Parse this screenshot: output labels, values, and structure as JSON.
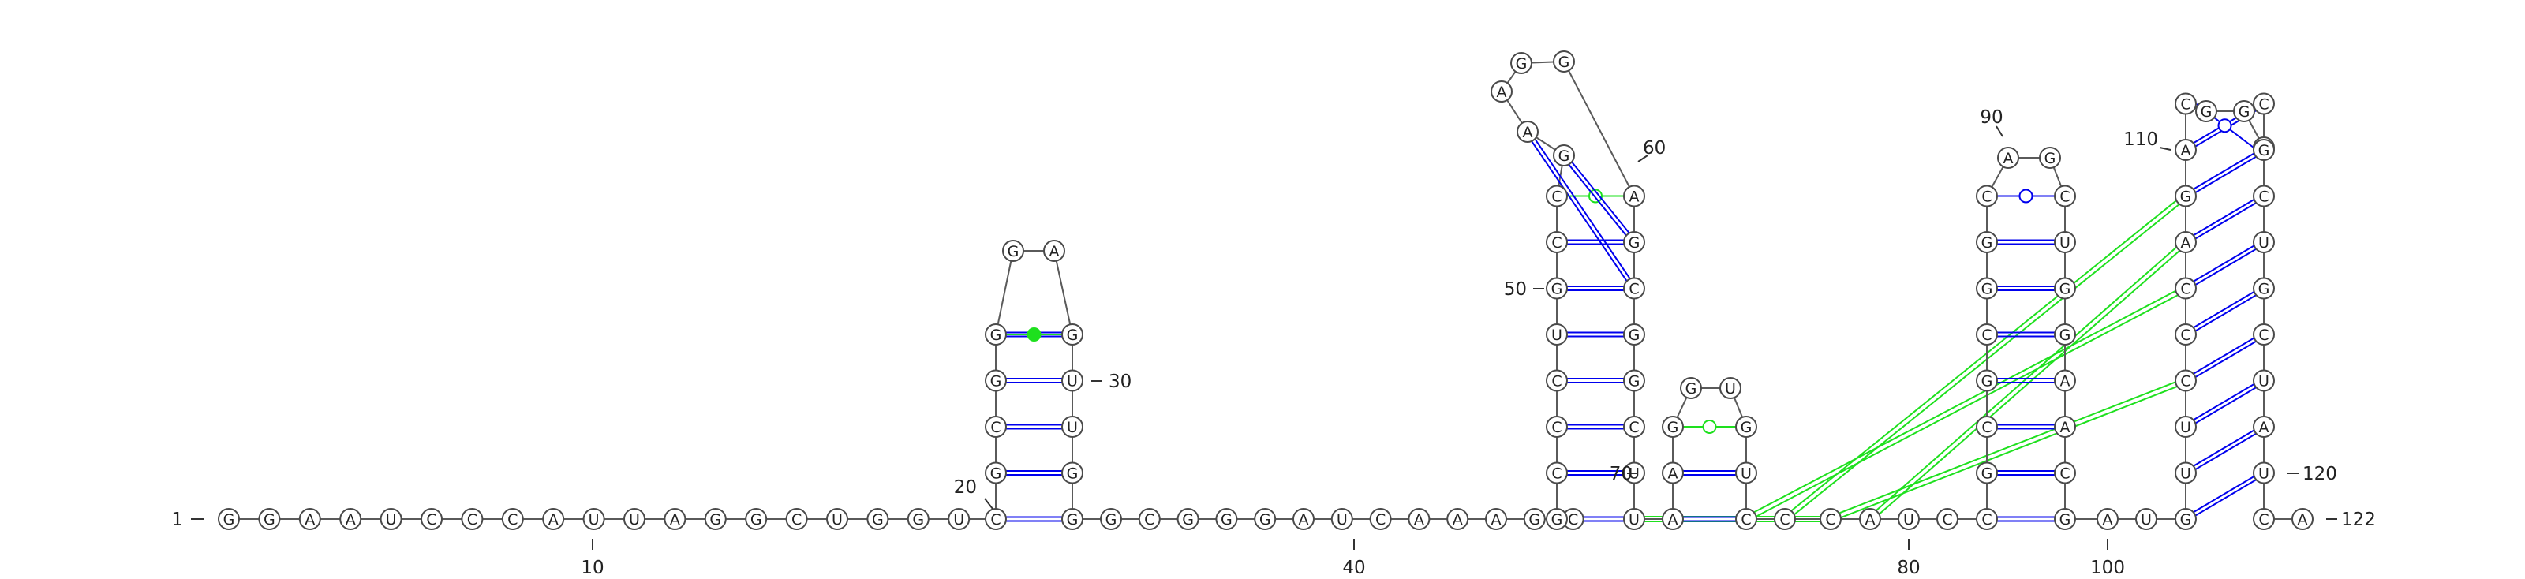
{
  "sequence": "GGAAUCCCAUUAGGCUGGUCGCGGGAGUUGGGCGGGAUCAAAGCGCCCUGCCGAAGGAGCGGCUUAAGGUGUCCCAUCCGCGCGGCAGCUGGAACGAUGUUCCCAGACGGCCGCUGCUAUCAC",
  "colors": {
    "wc_pair": "#0000ee",
    "noncanonical_pair": "#1ee01e",
    "backbone": "#5a5a5a",
    "base_fill": "#ffffff"
  },
  "labels": {
    "n1": "1",
    "n10": "10",
    "n20": "20",
    "n30": "30",
    "n40": "40",
    "n50": "50",
    "n60": "60",
    "n70": "70",
    "n80": "80",
    "n90": "90",
    "n100": "100",
    "n110": "110",
    "n120": "120",
    "n122": "122"
  }
}
